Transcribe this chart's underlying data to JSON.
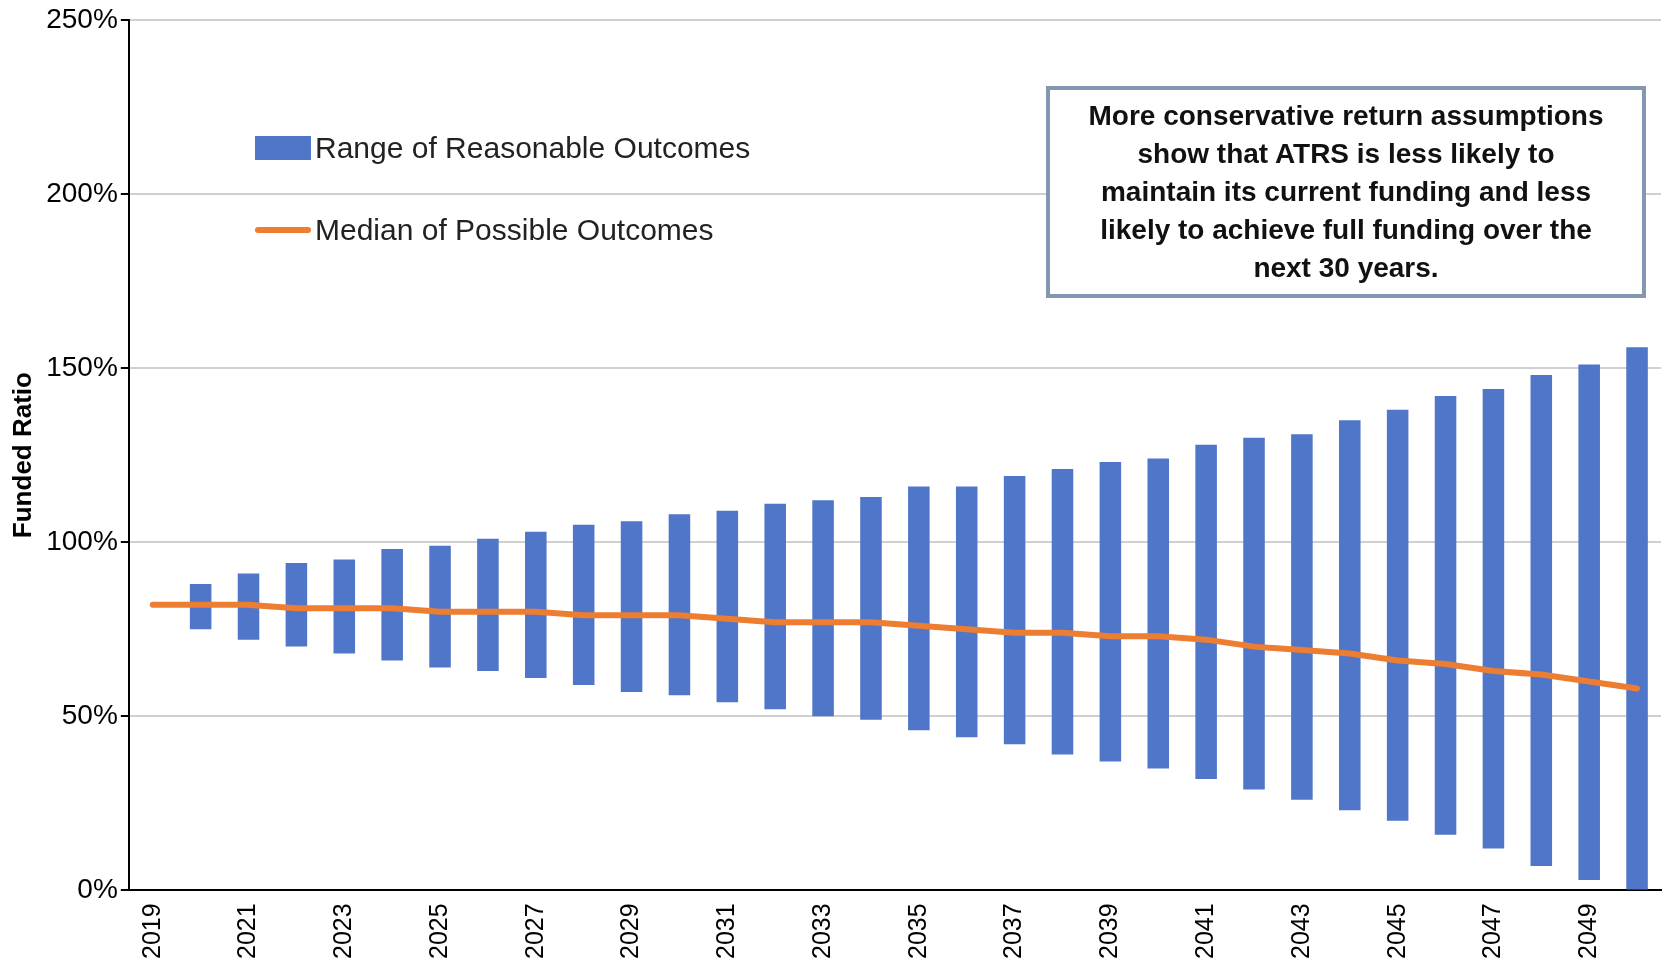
{
  "chart_data": {
    "type": "bar",
    "ylabel": "Funded Ratio",
    "categories": [
      "2019",
      null,
      "2021",
      null,
      "2023",
      null,
      "2025",
      null,
      "2027",
      null,
      "2029",
      null,
      "2031",
      null,
      "2033",
      null,
      "2035",
      null,
      "2037",
      null,
      "2039",
      null,
      "2041",
      null,
      "2043",
      null,
      "2045",
      null,
      "2047",
      null,
      "2049",
      null
    ],
    "series": [
      {
        "name": "Range of Reasonable Outcomes",
        "color": "#4f76c8",
        "base": [
          null,
          75,
          72,
          70,
          68,
          66,
          64,
          63,
          61,
          59,
          57,
          56,
          54,
          52,
          50,
          49,
          46,
          44,
          42,
          39,
          37,
          35,
          32,
          29,
          26,
          23,
          20,
          16,
          12,
          7,
          3,
          0
        ],
        "values": [
          null,
          13,
          19,
          24,
          27,
          32,
          35,
          38,
          42,
          46,
          49,
          52,
          55,
          59,
          62,
          64,
          70,
          72,
          77,
          82,
          86,
          89,
          96,
          101,
          105,
          112,
          118,
          126,
          132,
          141,
          148,
          156
        ]
      },
      {
        "name": "Median of Possible Outcomes",
        "type": "line",
        "color": "#ed7d31",
        "values": [
          82,
          82,
          82,
          81,
          81,
          81,
          80,
          80,
          80,
          79,
          79,
          79,
          78,
          77,
          77,
          77,
          76,
          75,
          74,
          74,
          73,
          73,
          72,
          70,
          69,
          68,
          66,
          65,
          63,
          62,
          60,
          58
        ]
      }
    ],
    "ylim": [
      0,
      250
    ],
    "yticks": [
      {
        "value": 0,
        "label": "0%"
      },
      {
        "value": 50,
        "label": "50%"
      },
      {
        "value": 100,
        "label": "100%"
      },
      {
        "value": 150,
        "label": "150%"
      },
      {
        "value": 200,
        "label": "200%"
      },
      {
        "value": 250,
        "label": "250%"
      }
    ],
    "grid": "y",
    "legend": "top left",
    "marker": "none",
    "annotations": [
      "More conservative return assumptions show that ATRS is less likely to maintain its current funding and less likely to achieve full funding over the next 30 years."
    ]
  }
}
